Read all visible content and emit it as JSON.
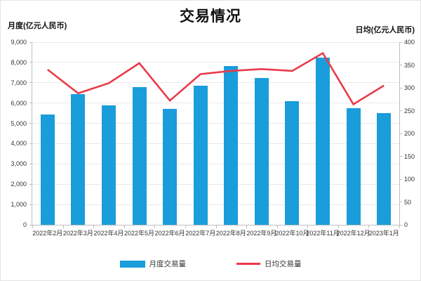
{
  "chart_data": {
    "type": "combo",
    "title": "交易情况",
    "categories": [
      "2022年2月",
      "2022年3月",
      "2022年4月",
      "2022年5月",
      "2022年6月",
      "2022年7月",
      "2022年8月",
      "2022年9月",
      "2022年10月",
      "2022年11月",
      "2022年12月",
      "2023年1月"
    ],
    "series": [
      {
        "name": "月度交易量",
        "type": "bar",
        "axis": "left",
        "color": "#199ddb",
        "values": [
          5420,
          6450,
          5900,
          6780,
          5720,
          6870,
          7830,
          7250,
          6090,
          8230,
          5760,
          5500
        ]
      },
      {
        "name": "日均交易量",
        "type": "line",
        "axis": "right",
        "color": "#e93a4a",
        "values": [
          340,
          288,
          310,
          354,
          272,
          330,
          337,
          341,
          337,
          376,
          264,
          305
        ]
      }
    ],
    "left_axis": {
      "label": "月度(亿元人民币)",
      "min": 0,
      "max": 9000,
      "step": 1000,
      "tick_format": "thousands-comma"
    },
    "right_axis": {
      "label": "日均(亿元人民币)",
      "min": 0,
      "max": 400,
      "step": 50
    },
    "grid": true,
    "legend_position": "bottom"
  }
}
